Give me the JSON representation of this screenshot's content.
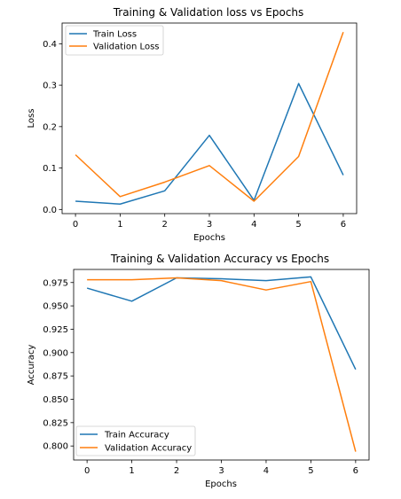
{
  "chart_data": [
    {
      "type": "line",
      "title": "Training & Validation loss vs Epochs",
      "xlabel": "Epochs",
      "ylabel": "Loss",
      "x": [
        0,
        1,
        2,
        3,
        4,
        5,
        6
      ],
      "xlim": [
        -0.3,
        6.3
      ],
      "ylim": [
        -0.01,
        0.45
      ],
      "xticks": [
        0,
        1,
        2,
        3,
        4,
        5,
        6
      ],
      "yticks": [
        0.0,
        0.1,
        0.2,
        0.3,
        0.4
      ],
      "ytick_labels": [
        "0.0",
        "0.1",
        "0.2",
        "0.3",
        "0.4"
      ],
      "grid": false,
      "legend_position": "upper-left",
      "series": [
        {
          "name": "Train Loss",
          "color": "#1f77b4",
          "values": [
            0.02,
            0.013,
            0.045,
            0.179,
            0.022,
            0.304,
            0.083
          ]
        },
        {
          "name": "Validation Loss",
          "color": "#ff7f0e",
          "values": [
            0.132,
            0.031,
            0.066,
            0.106,
            0.02,
            0.128,
            0.428
          ]
        }
      ]
    },
    {
      "type": "line",
      "title": "Training & Validation Accuracy vs Epochs",
      "xlabel": "Epochs",
      "ylabel": "Accuracy",
      "x": [
        0,
        1,
        2,
        3,
        4,
        5,
        6
      ],
      "xlim": [
        -0.3,
        6.3
      ],
      "ylim": [
        0.785,
        0.989
      ],
      "xticks": [
        0,
        1,
        2,
        3,
        4,
        5,
        6
      ],
      "yticks": [
        0.8,
        0.825,
        0.85,
        0.875,
        0.9,
        0.925,
        0.95,
        0.975
      ],
      "ytick_labels": [
        "0.800",
        "0.825",
        "0.850",
        "0.875",
        "0.900",
        "0.925",
        "0.950",
        "0.975"
      ],
      "grid": false,
      "legend_position": "lower-left",
      "series": [
        {
          "name": "Train Accuracy",
          "color": "#1f77b4",
          "values": [
            0.969,
            0.955,
            0.98,
            0.979,
            0.977,
            0.981,
            0.882
          ]
        },
        {
          "name": "Validation Accuracy",
          "color": "#ff7f0e",
          "values": [
            0.978,
            0.978,
            0.98,
            0.977,
            0.967,
            0.976,
            0.794
          ]
        }
      ]
    }
  ]
}
